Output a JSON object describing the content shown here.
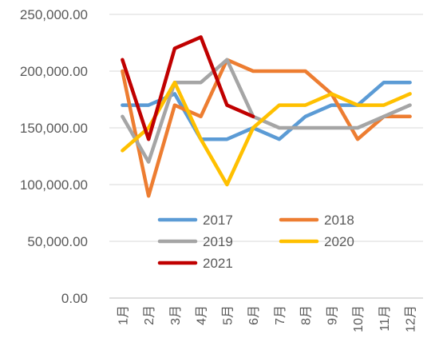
{
  "chart_data": {
    "type": "line",
    "categories": [
      "1月",
      "2月",
      "3月",
      "4月",
      "5月",
      "6月",
      "7月",
      "8月",
      "9月",
      "10月",
      "11月",
      "12月"
    ],
    "ylim": [
      0,
      250000
    ],
    "ytick_values": [
      0,
      50000,
      100000,
      150000,
      200000,
      250000
    ],
    "ytick_labels": [
      "0.00",
      "50,000.00",
      "100,000.00",
      "150,000.00",
      "200,000.00",
      "250,000.00"
    ],
    "grid": true,
    "legend_position": "inside-bottom",
    "series": [
      {
        "name": "2017",
        "color": "#5B9BD5",
        "values": [
          170000,
          170000,
          180000,
          140000,
          140000,
          150000,
          140000,
          160000,
          170000,
          170000,
          190000,
          190000
        ]
      },
      {
        "name": "2018",
        "color": "#ED7D31",
        "values": [
          200000,
          90000,
          170000,
          160000,
          210000,
          200000,
          200000,
          200000,
          180000,
          140000,
          160000,
          160000
        ]
      },
      {
        "name": "2019",
        "color": "#A5A5A5",
        "values": [
          160000,
          120000,
          190000,
          190000,
          210000,
          160000,
          150000,
          150000,
          150000,
          150000,
          160000,
          170000
        ]
      },
      {
        "name": "2020",
        "color": "#FFC000",
        "values": [
          130000,
          150000,
          190000,
          140000,
          100000,
          150000,
          170000,
          170000,
          180000,
          170000,
          170000,
          180000
        ]
      },
      {
        "name": "2021",
        "color": "#C00000",
        "values": [
          210000,
          140000,
          220000,
          230000,
          170000,
          160000,
          null,
          null,
          null,
          null,
          null,
          null
        ]
      }
    ]
  }
}
